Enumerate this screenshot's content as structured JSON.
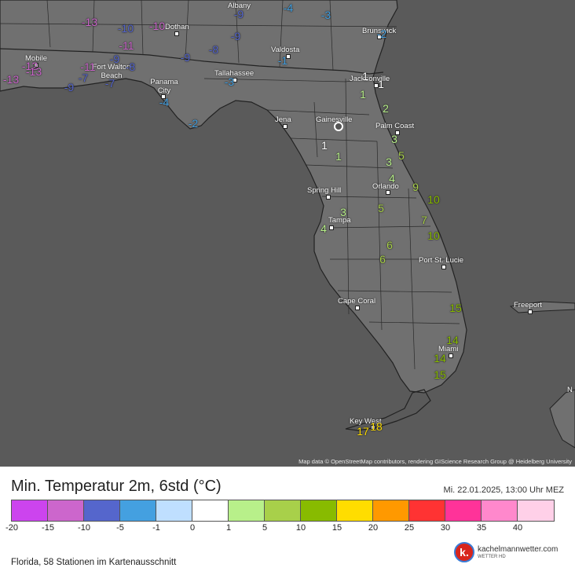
{
  "map": {
    "attribution": "Map data © OpenStreetMap contributors, rendering GIScience Research Group @ Heidelberg University",
    "cities": [
      {
        "name": "Albany"
      },
      {
        "name": "Dothan"
      },
      {
        "name": "Brunswick"
      },
      {
        "name": "Mobile"
      },
      {
        "name": "Fort Walton Beach"
      },
      {
        "name": "Valdosta"
      },
      {
        "name": "Panama City"
      },
      {
        "name": "Tallahassee"
      },
      {
        "name": "Jacksonville"
      },
      {
        "name": "Jena"
      },
      {
        "name": "Gainesville"
      },
      {
        "name": "Palm Coast"
      },
      {
        "name": "Orlando"
      },
      {
        "name": "Spring Hill"
      },
      {
        "name": "Tampa"
      },
      {
        "name": "Port St. Lucie"
      },
      {
        "name": "Cape Coral"
      },
      {
        "name": "Freeport"
      },
      {
        "name": "Miami"
      },
      {
        "name": "Key West"
      },
      {
        "name": "N"
      }
    ],
    "stations": [
      {
        "v": "-13"
      },
      {
        "v": "-10"
      },
      {
        "v": "-10"
      },
      {
        "v": "-9"
      },
      {
        "v": "-4"
      },
      {
        "v": "-3"
      },
      {
        "v": "-2"
      },
      {
        "v": "-11"
      },
      {
        "v": "-9"
      },
      {
        "v": "-8"
      },
      {
        "v": "-9"
      },
      {
        "v": "-1"
      },
      {
        "v": "-13"
      },
      {
        "v": "-12"
      },
      {
        "v": "-13"
      },
      {
        "v": "-11"
      },
      {
        "v": "-9"
      },
      {
        "v": "-8"
      },
      {
        "v": "-7"
      },
      {
        "v": "-7"
      },
      {
        "v": "-9"
      },
      {
        "v": "-3"
      },
      {
        "v": "-4"
      },
      {
        "v": "-2"
      },
      {
        "v": "1"
      },
      {
        "v": "1"
      },
      {
        "v": "1"
      },
      {
        "v": "2"
      },
      {
        "v": "3"
      },
      {
        "v": "1"
      },
      {
        "v": "1"
      },
      {
        "v": "5"
      },
      {
        "v": "3"
      },
      {
        "v": "4"
      },
      {
        "v": "9"
      },
      {
        "v": "10"
      },
      {
        "v": "5"
      },
      {
        "v": "7"
      },
      {
        "v": "3"
      },
      {
        "v": "4"
      },
      {
        "v": "10"
      },
      {
        "v": "6"
      },
      {
        "v": "6"
      },
      {
        "v": "15"
      },
      {
        "v": "14"
      },
      {
        "v": "14"
      },
      {
        "v": "15"
      },
      {
        "v": "17"
      },
      {
        "v": "18"
      }
    ]
  },
  "legend": {
    "title": "Min. Temperatur 2m, 6std (°C)",
    "date": "Mi. 22.01.2025, 13:00 Uhr MEZ",
    "colors": [
      "#cc44ee",
      "#cc66cc",
      "#5566cc",
      "#44a0e0",
      "#bfdfff",
      "#ffffff",
      "#b8f08a",
      "#a8d04a",
      "#88bb00",
      "#ffdd00",
      "#ff9900",
      "#ff3333",
      "#ff3399",
      "#ff88cc",
      "#ffd0e8"
    ],
    "ticks": [
      "-20",
      "-15",
      "-10",
      "-5",
      "-1",
      "0",
      "1",
      "5",
      "10",
      "15",
      "20",
      "25",
      "30",
      "35",
      "40"
    ],
    "footer": "Florida, 58 Stationen im Kartenausschnitt",
    "brand_name": "kachelmannwetter.com",
    "brand_sub": "WETTER HD",
    "brand_letter": "k."
  }
}
